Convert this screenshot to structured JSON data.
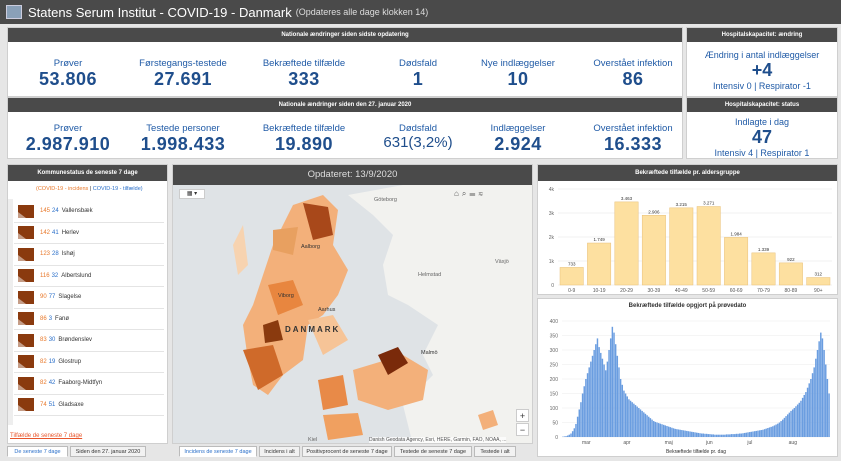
{
  "header": {
    "title": "Statens Serum Institut - COVID-19 - Danmark",
    "subtitle": "(Opdateres alle dage klokken 14)"
  },
  "national_today": {
    "title": "Nationale ændringer siden sidste opdatering",
    "stats": [
      {
        "label": "Prøver",
        "value": "53.806"
      },
      {
        "label": "Førstegangs-testede",
        "value": "27.691"
      },
      {
        "label": "Bekræftede tilfælde",
        "value": "333"
      },
      {
        "label": "Dødsfald",
        "value": "1"
      },
      {
        "label": "Nye indlæggelser",
        "value": "10"
      },
      {
        "label": "Overstået infektion",
        "value": "86"
      }
    ]
  },
  "national_total": {
    "title": "Nationale ændringer siden den 27. januar 2020",
    "stats": [
      {
        "label": "Prøver",
        "value": "2.987.910"
      },
      {
        "label": "Testede personer",
        "value": "1.998.433"
      },
      {
        "label": "Bekræftede tilfælde",
        "value": "19.890"
      },
      {
        "label": "Dødsfald",
        "value": "631(3,2%)"
      },
      {
        "label": "Indlæggelser",
        "value": "2.924"
      },
      {
        "label": "Overstået infektion",
        "value": "16.333"
      }
    ]
  },
  "hospital_change": {
    "title": "Hospitalskapacitet: ændring",
    "label": "Ændring i antal indlæggelser",
    "value": "+4",
    "detail": "Intensiv 0 | Respirator -1"
  },
  "hospital_status": {
    "title": "Hospitalskapacitet: status",
    "label": "Indlagte i dag",
    "value": "47",
    "detail": "Intensiv 4 | Respirator 1"
  },
  "municipal": {
    "title": "Kommunestatus de seneste 7 dage",
    "legend_a": "(COVID-19 - incidens",
    "legend_sep": " | ",
    "legend_b": "COVID-19 - tilfælde)",
    "items": [
      {
        "a": "145",
        "b": "24",
        "name": "Vallensbæk"
      },
      {
        "a": "142",
        "b": "41",
        "name": "Herlev"
      },
      {
        "a": "123",
        "b": "28",
        "name": "Ishøj"
      },
      {
        "a": "116",
        "b": "32",
        "name": "Albertslund"
      },
      {
        "a": "90",
        "b": "77",
        "name": "Slagelse"
      },
      {
        "a": "86",
        "b": "3",
        "name": "Fanø"
      },
      {
        "a": "83",
        "b": "30",
        "name": "Brøndenslev"
      },
      {
        "a": "82",
        "b": "19",
        "name": "Glostrup"
      },
      {
        "a": "82",
        "b": "42",
        "name": "Faaborg-Midtfyn"
      },
      {
        "a": "74",
        "b": "51",
        "name": "Gladsaxe"
      }
    ],
    "footer": "Tilfælde de seneste 7 dage"
  },
  "map": {
    "title": "Opdateret: 13/9/2020",
    "labels": [
      "Göteborg",
      "Aalborg",
      "Viborg",
      "Aarhus",
      "Helmstad",
      "Växjö",
      "DANMARK",
      "Malmö",
      "Kiel"
    ],
    "zoom_in": "+",
    "zoom_out": "−",
    "attribution": "Danish Geodata Agency, Esri, HERE, Garmin, FAO, NOAA, ..."
  },
  "age_chart_title": "Bekræftede tilfælde pr. aldersgruppe",
  "test_chart_title": "Bekræftede tilfælde opgjort på prøvedato",
  "chart_data": [
    {
      "type": "bar",
      "categories": [
        "0-9",
        "10-19",
        "20-29",
        "30-39",
        "40-49",
        "50-59",
        "60-69",
        "70-79",
        "80-89",
        "90+"
      ],
      "values": [
        733,
        1749,
        3463,
        2906,
        3215,
        3271,
        1984,
        1339,
        922,
        312
      ],
      "value_labels": [
        "733",
        "1.749",
        "3.463",
        "2.906",
        "3.215",
        "3.271",
        "1.984",
        "1.339",
        "922",
        "312"
      ],
      "yticks": [
        "0",
        "1k",
        "2k",
        "3k",
        "4k"
      ],
      "ylim": [
        0,
        4000
      ],
      "color": "#fde0a0"
    },
    {
      "type": "bar",
      "xlabel": "Bekræftede tilfælde pr. dag",
      "months": [
        "mar",
        "apr",
        "maj",
        "jun",
        "jul",
        "aug"
      ],
      "yticks": [
        "0",
        "50",
        "100",
        "150",
        "200",
        "250",
        "300",
        "350",
        "400"
      ],
      "ylim": [
        0,
        400
      ],
      "color": "#6a9de0",
      "values": [
        1,
        2,
        3,
        5,
        8,
        12,
        20,
        30,
        45,
        70,
        95,
        120,
        150,
        175,
        200,
        220,
        240,
        260,
        280,
        300,
        320,
        340,
        310,
        290,
        270,
        250,
        230,
        260,
        300,
        340,
        380,
        360,
        320,
        280,
        240,
        200,
        180,
        160,
        150,
        140,
        130,
        125,
        120,
        115,
        110,
        105,
        100,
        95,
        90,
        85,
        80,
        75,
        70,
        65,
        60,
        55,
        52,
        50,
        48,
        46,
        44,
        42,
        40,
        38,
        36,
        34,
        32,
        30,
        28,
        27,
        26,
        25,
        24,
        23,
        22,
        21,
        20,
        19,
        18,
        17,
        16,
        15,
        14,
        13,
        12,
        12,
        11,
        11,
        10,
        10,
        9,
        9,
        8,
        8,
        8,
        8,
        8,
        8,
        8,
        9,
        9,
        9,
        10,
        10,
        10,
        11,
        11,
        12,
        12,
        13,
        14,
        15,
        16,
        17,
        18,
        19,
        20,
        21,
        22,
        23,
        24,
        25,
        27,
        29,
        31,
        33,
        35,
        37,
        40,
        43,
        46,
        50,
        55,
        60,
        66,
        72,
        78,
        84,
        90,
        95,
        100,
        106,
        112,
        118,
        125,
        135,
        145,
        155,
        170,
        185,
        200,
        220,
        240,
        270,
        300,
        330,
        360,
        340,
        300,
        250,
        200,
        150
      ]
    }
  ],
  "tabs_left": [
    "De seneste 7 dage",
    "Siden den 27. januar 2020"
  ],
  "tabs_map": [
    "Incidens de seneste 7 dage",
    "Incidens i alt",
    "Positivprocent de seneste 7 dage",
    "Testede de seneste 7 dage",
    "Testede i alt"
  ]
}
